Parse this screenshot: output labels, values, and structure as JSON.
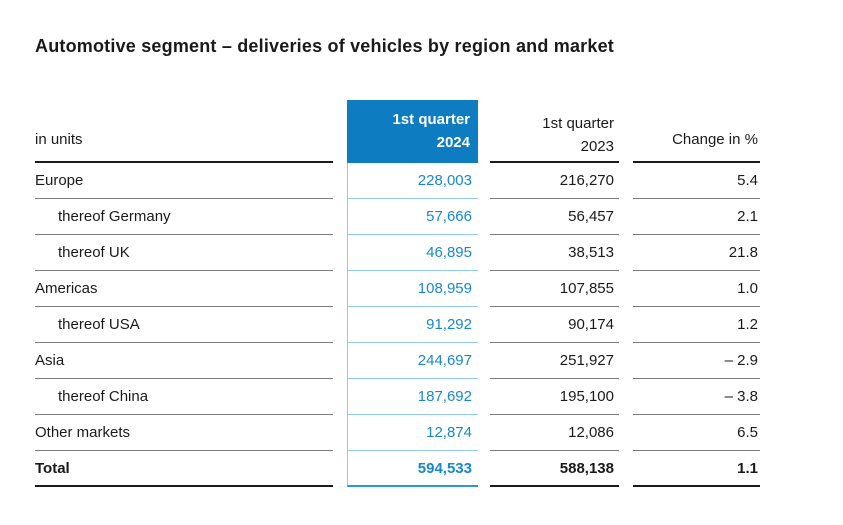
{
  "title": "Automotive segment – deliveries of vehicles by region and market",
  "colors": {
    "accent_blue": "#0d7cc1",
    "number_blue": "#1789cb",
    "light_blue_line": "#93cbe8",
    "total_blue_line": "#2e96d1",
    "gray_line": "#7c7c7c",
    "black_line": "#1a1a1a"
  },
  "table": {
    "unit_label": "in units",
    "header": {
      "q1_2024_line1": "1st quarter",
      "q1_2024_line2": "2024",
      "q1_2023_line1": "1st quarter",
      "q1_2023_line2": "2023",
      "change_label": "Change in %"
    },
    "rows": [
      {
        "label": "Europe",
        "indent": false,
        "total": false,
        "q1_2024": "228,003",
        "q1_2023": "216,270",
        "change": "5.4"
      },
      {
        "label": "thereof Germany",
        "indent": true,
        "total": false,
        "q1_2024": "57,666",
        "q1_2023": "56,457",
        "change": "2.1"
      },
      {
        "label": "thereof UK",
        "indent": true,
        "total": false,
        "q1_2024": "46,895",
        "q1_2023": "38,513",
        "change": "21.8"
      },
      {
        "label": "Americas",
        "indent": false,
        "total": false,
        "q1_2024": "108,959",
        "q1_2023": "107,855",
        "change": "1.0"
      },
      {
        "label": "thereof USA",
        "indent": true,
        "total": false,
        "q1_2024": "91,292",
        "q1_2023": "90,174",
        "change": "1.2"
      },
      {
        "label": "Asia",
        "indent": false,
        "total": false,
        "q1_2024": "244,697",
        "q1_2023": "251,927",
        "change": "– 2.9"
      },
      {
        "label": "thereof China",
        "indent": true,
        "total": false,
        "q1_2024": "187,692",
        "q1_2023": "195,100",
        "change": "– 3.8"
      },
      {
        "label": "Other markets",
        "indent": false,
        "total": false,
        "q1_2024": "12,874",
        "q1_2023": "12,086",
        "change": "6.5"
      },
      {
        "label": "Total",
        "indent": false,
        "total": true,
        "q1_2024": "594,533",
        "q1_2023": "588,138",
        "change": "1.1"
      }
    ]
  }
}
